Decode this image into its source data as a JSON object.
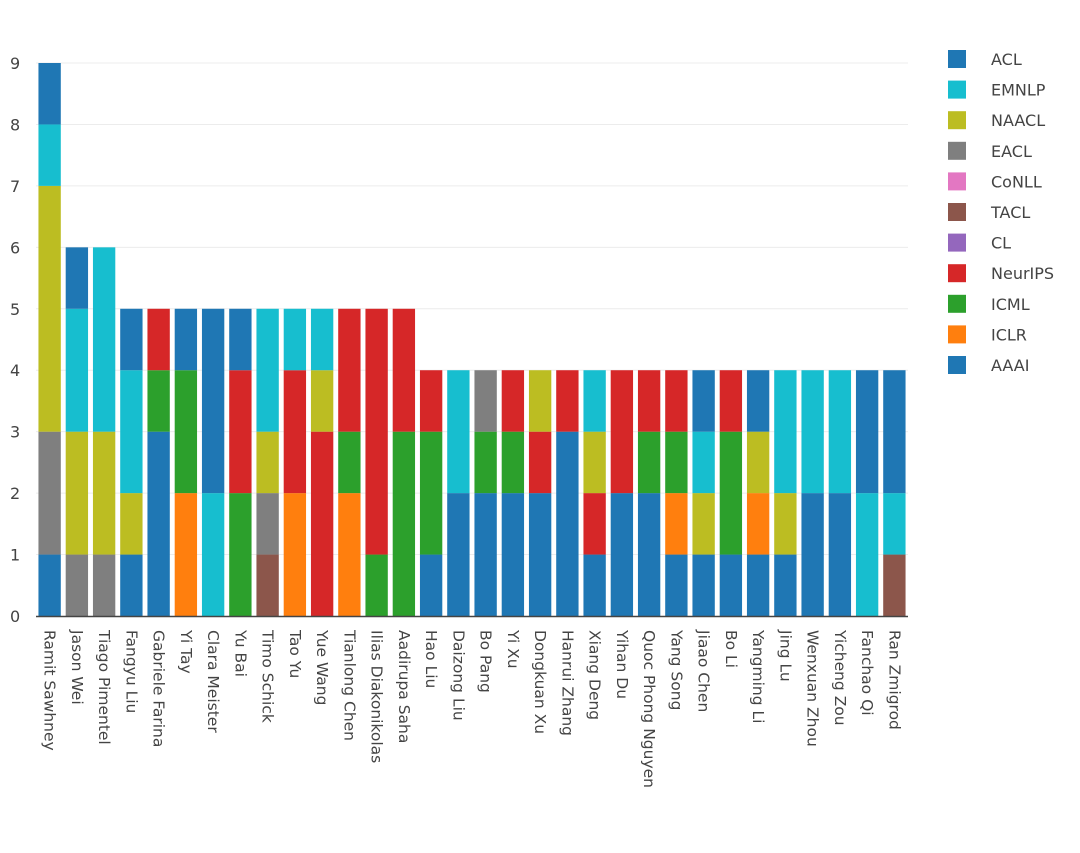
{
  "chart_data": {
    "type": "bar",
    "stacked": true,
    "title": "",
    "xlabel": "",
    "ylabel": "",
    "ylim": [
      0,
      9
    ],
    "yticks": [
      0,
      1,
      2,
      3,
      4,
      5,
      6,
      7,
      8,
      9
    ],
    "grid": true,
    "legend_position": "top-right",
    "categories": [
      "Ramit Sawhney",
      "Jason Wei",
      "Tiago Pimentel",
      "Fangyu Liu",
      "Gabriele Farina",
      "Yi Tay",
      "Clara Meister",
      "Yu Bai",
      "Timo Schick",
      "Tao Yu",
      "Yue Wang",
      "Tianlong Chen",
      "Ilias Diakonikolas",
      "Aadirupa Saha",
      "Hao Liu",
      "Daizong Liu",
      "Bo Pang",
      "Yi Xu",
      "Dongkuan Xu",
      "Hanrui Zhang",
      "Xiang Deng",
      "Yihan Du",
      "Quoc Phong Nguyen",
      "Yang Song",
      "Jiaao Chen",
      "Bo Li",
      "Yangming Li",
      "Jing Lu",
      "Wenxuan Zhou",
      "Yicheng Zou",
      "Fanchao Qi",
      "Ran Zmigrod"
    ],
    "stack_order": [
      "AAAI",
      "ICLR",
      "ICML",
      "NeurIPS",
      "CL",
      "TACL",
      "CoNLL",
      "EACL",
      "NAACL",
      "EMNLP",
      "ACL"
    ],
    "series": [
      {
        "name": "ACL",
        "color": "#1f77b4",
        "values": [
          1,
          1,
          0,
          1,
          0,
          1,
          3,
          1,
          0,
          0,
          0,
          0,
          0,
          0,
          0,
          0,
          0,
          0,
          0,
          0,
          0,
          0,
          0,
          0,
          1,
          0,
          1,
          0,
          0,
          0,
          2,
          2
        ]
      },
      {
        "name": "EMNLP",
        "color": "#17becf",
        "values": [
          1,
          2,
          3,
          2,
          0,
          0,
          2,
          0,
          2,
          1,
          1,
          0,
          0,
          0,
          0,
          2,
          0,
          0,
          0,
          0,
          1,
          0,
          0,
          0,
          1,
          0,
          0,
          2,
          2,
          2,
          2,
          1
        ]
      },
      {
        "name": "NAACL",
        "color": "#bcbd22",
        "values": [
          4,
          2,
          2,
          1,
          0,
          0,
          0,
          0,
          1,
          0,
          1,
          0,
          0,
          0,
          0,
          0,
          0,
          0,
          1,
          0,
          1,
          0,
          0,
          0,
          1,
          0,
          1,
          1,
          0,
          0,
          0,
          0
        ]
      },
      {
        "name": "EACL",
        "color": "#7f7f7f",
        "values": [
          2,
          1,
          1,
          0,
          0,
          0,
          0,
          0,
          1,
          0,
          0,
          0,
          0,
          0,
          0,
          0,
          1,
          0,
          0,
          0,
          0,
          0,
          0,
          0,
          0,
          0,
          0,
          0,
          0,
          0,
          0,
          0
        ]
      },
      {
        "name": "CoNLL",
        "color": "#e377c2",
        "values": [
          0,
          0,
          0,
          0,
          0,
          0,
          0,
          0,
          0,
          0,
          0,
          0,
          0,
          0,
          0,
          0,
          0,
          0,
          0,
          0,
          0,
          0,
          0,
          0,
          0,
          0,
          0,
          0,
          0,
          0,
          0,
          0
        ]
      },
      {
        "name": "TACL",
        "color": "#8c564b",
        "values": [
          0,
          0,
          0,
          0,
          0,
          0,
          0,
          0,
          1,
          0,
          0,
          0,
          0,
          0,
          0,
          0,
          0,
          0,
          0,
          0,
          0,
          0,
          0,
          0,
          0,
          0,
          0,
          0,
          0,
          0,
          0,
          1
        ]
      },
      {
        "name": "CL",
        "color": "#9467bd",
        "values": [
          0,
          0,
          0,
          0,
          0,
          0,
          0,
          0,
          0,
          0,
          0,
          0,
          0,
          0,
          0,
          0,
          0,
          0,
          0,
          0,
          0,
          0,
          0,
          0,
          0,
          0,
          0,
          0,
          0,
          0,
          0,
          0
        ]
      },
      {
        "name": "NeurIPS",
        "color": "#d62728",
        "values": [
          0,
          0,
          0,
          0,
          1,
          0,
          0,
          2,
          0,
          2,
          3,
          2,
          4,
          2,
          1,
          0,
          0,
          1,
          1,
          1,
          1,
          2,
          1,
          1,
          0,
          1,
          0,
          0,
          0,
          0,
          0,
          0
        ]
      },
      {
        "name": "ICML",
        "color": "#2ca02c",
        "values": [
          0,
          0,
          0,
          0,
          1,
          2,
          0,
          2,
          0,
          0,
          0,
          1,
          1,
          3,
          2,
          0,
          1,
          1,
          0,
          0,
          0,
          0,
          1,
          1,
          0,
          2,
          0,
          0,
          0,
          0,
          0,
          0
        ]
      },
      {
        "name": "ICLR",
        "color": "#ff7f0e",
        "values": [
          0,
          0,
          0,
          0,
          0,
          2,
          0,
          0,
          0,
          2,
          0,
          2,
          0,
          0,
          0,
          0,
          0,
          0,
          0,
          0,
          0,
          0,
          0,
          1,
          0,
          0,
          1,
          0,
          0,
          0,
          0,
          0
        ]
      },
      {
        "name": "AAAI",
        "color": "#1f77b4",
        "values": [
          1,
          0,
          0,
          1,
          3,
          0,
          0,
          0,
          0,
          0,
          0,
          0,
          0,
          0,
          1,
          2,
          2,
          2,
          2,
          3,
          1,
          2,
          2,
          1,
          1,
          1,
          1,
          1,
          2,
          2,
          0,
          0
        ]
      }
    ]
  }
}
